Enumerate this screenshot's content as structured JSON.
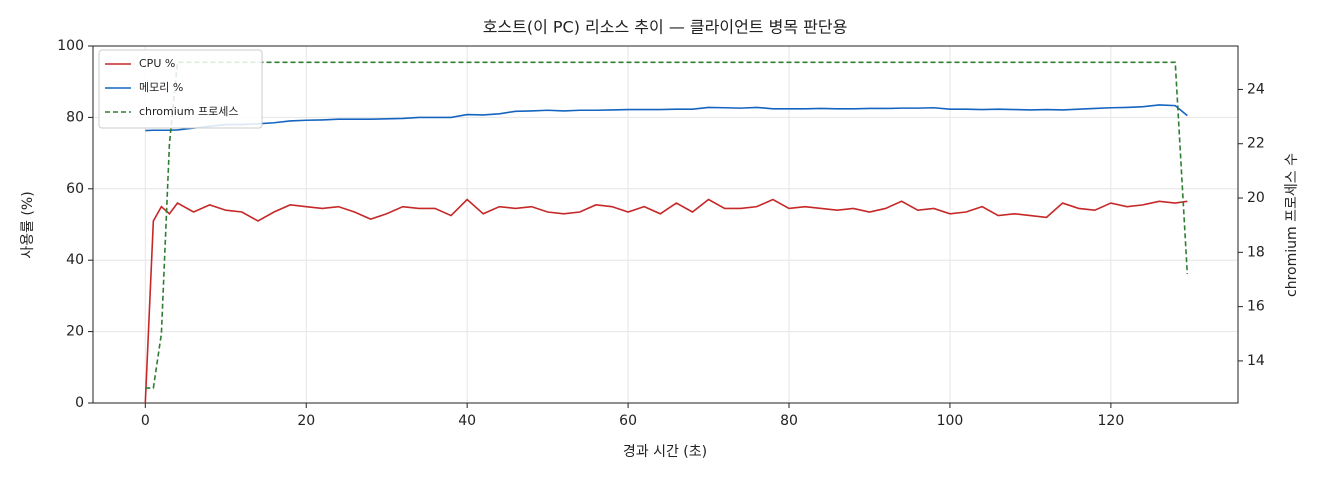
{
  "chart_data": {
    "type": "line",
    "title": "호스트(이 PC) 리소스 추이 — 클라이언트 병목 판단용",
    "x_label": "경과 시간 (초)",
    "y_label": "사용률 (%)",
    "y2_label": "chromium 프로세스 수",
    "x": [
      0,
      1,
      2,
      3,
      4,
      6,
      8,
      10,
      12,
      14,
      16,
      18,
      20,
      22,
      24,
      26,
      28,
      30,
      32,
      34,
      36,
      38,
      40,
      42,
      44,
      46,
      48,
      50,
      52,
      54,
      56,
      58,
      60,
      62,
      64,
      66,
      68,
      70,
      72,
      74,
      76,
      78,
      80,
      82,
      84,
      86,
      88,
      90,
      92,
      94,
      96,
      98,
      100,
      102,
      104,
      106,
      108,
      110,
      112,
      114,
      116,
      118,
      120,
      122,
      124,
      126,
      128,
      129.5
    ],
    "series": [
      {
        "name": "CPU %",
        "color": "#c62828",
        "dash": false,
        "values": [
          0,
          51,
          55,
          53,
          56,
          53.5,
          55.5,
          54,
          53.5,
          51,
          53.5,
          55.5,
          55,
          54.5,
          55,
          53.5,
          51.5,
          53,
          55,
          54.5,
          54.5,
          52.5,
          57,
          53,
          55,
          54.5,
          55,
          53.5,
          53,
          53.5,
          55.5,
          55,
          53.5,
          55,
          53,
          56,
          53.5,
          57,
          54.5,
          54.5,
          55,
          57,
          54.5,
          55,
          54.5,
          54,
          54.5,
          53.5,
          54.5,
          56.5,
          54,
          54.5,
          53,
          53.5,
          55,
          52.5,
          53,
          52.5,
          52,
          56,
          54.5,
          54,
          56,
          55,
          55.5,
          56.5,
          56,
          56.5
        ]
      },
      {
        "name": "메모리 %",
        "color": "#1565c0",
        "dash": false,
        "values": [
          76.3,
          76.4,
          76.4,
          76.4,
          76.5,
          77,
          77.5,
          78,
          78,
          78.2,
          78.5,
          79,
          79.2,
          79.3,
          79.5,
          79.5,
          79.5,
          79.6,
          79.7,
          80,
          80,
          80,
          80.8,
          80.7,
          81,
          81.7,
          81.8,
          82,
          81.8,
          82,
          82,
          82.1,
          82.2,
          82.2,
          82.2,
          82.3,
          82.3,
          82.8,
          82.7,
          82.6,
          82.8,
          82.4,
          82.4,
          82.4,
          82.5,
          82.4,
          82.4,
          82.5,
          82.5,
          82.6,
          82.6,
          82.7,
          82.3,
          82.3,
          82.2,
          82.3,
          82.2,
          82.1,
          82.2,
          82.1,
          82.3,
          82.5,
          82.7,
          82.8,
          83,
          83.5,
          83.3,
          80.5
        ]
      },
      {
        "name": "chromium 프로세스",
        "color": "#2e7d32",
        "dash": true,
        "axis": "y2",
        "values": [
          13,
          13,
          15,
          22,
          25,
          25,
          25,
          25,
          25,
          25,
          25,
          25,
          25,
          25,
          25,
          25,
          25,
          25,
          25,
          25,
          25,
          25,
          25,
          25,
          25,
          25,
          25,
          25,
          25,
          25,
          25,
          25,
          25,
          25,
          25,
          25,
          25,
          25,
          25,
          25,
          25,
          25,
          25,
          25,
          25,
          25,
          25,
          25,
          25,
          25,
          25,
          25,
          25,
          25,
          25,
          25,
          25,
          25,
          25,
          25,
          25,
          25,
          25,
          25,
          25,
          25,
          25,
          17.2
        ]
      }
    ],
    "xlim": [
      -6.5,
      135.8
    ],
    "xticks": [
      0,
      20,
      40,
      60,
      80,
      100,
      120
    ],
    "ylim": [
      0,
      100
    ],
    "yticks": [
      0,
      20,
      40,
      60,
      80,
      100
    ],
    "y2lim": [
      12.45,
      25.6
    ],
    "y2ticks": [
      14,
      16,
      18,
      20,
      22,
      24
    ],
    "grid": true,
    "legend": "upper-left"
  }
}
